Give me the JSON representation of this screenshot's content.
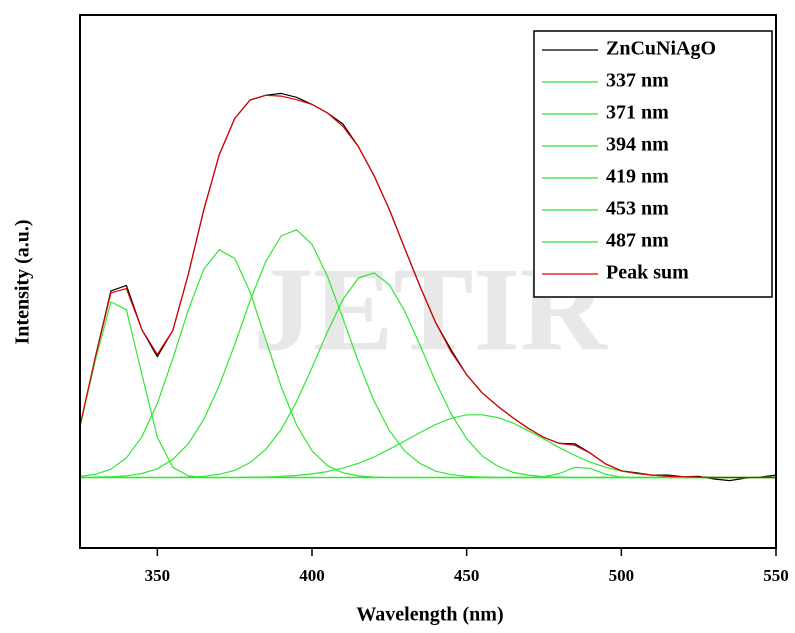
{
  "chart_data": {
    "type": "line",
    "xlabel": "Wavelength (nm)",
    "ylabel": "Intensity (a.u.)",
    "watermark": "JETIR",
    "x": [
      325,
      330,
      335,
      340,
      345,
      350,
      355,
      360,
      365,
      370,
      375,
      380,
      385,
      390,
      395,
      400,
      405,
      410,
      415,
      420,
      425,
      430,
      435,
      440,
      445,
      450,
      455,
      460,
      465,
      470,
      475,
      480,
      485,
      490,
      495,
      500,
      505,
      510,
      515,
      520,
      525,
      530,
      535,
      540,
      545,
      550
    ],
    "xlim": [
      325,
      550
    ],
    "xticks": [
      350,
      400,
      450,
      500,
      550
    ],
    "ylim": [
      -18,
      118
    ],
    "legend": "upper right",
    "series": [
      {
        "name": "ZnCuNiAgO",
        "color": "#000000",
        "values": [
          13.0,
          30.9,
          47.6,
          49.0,
          37.7,
          30.8,
          37.5,
          51.8,
          68.2,
          82.3,
          91.6,
          96.3,
          97.5,
          98.0,
          97.0,
          95.2,
          93.0,
          90.2,
          84.4,
          77.1,
          68.4,
          58.4,
          48.6,
          39.5,
          32.5,
          26.2,
          21.6,
          18.2,
          15.2,
          12.5,
          10.2,
          8.7,
          8.6,
          6.2,
          3.4,
          1.7,
          1.2,
          0.6,
          0.6,
          0.2,
          0.3,
          -0.4,
          -0.8,
          -0.2,
          0.1,
          0.6
        ]
      },
      {
        "name": "337 nm",
        "color": "#33e633",
        "values": [
          12.9,
          30.0,
          44.8,
          42.8,
          26.3,
          10.3,
          2.6,
          0.4,
          0,
          0,
          0,
          0,
          0,
          0,
          0,
          0,
          0,
          0,
          0,
          0,
          0,
          0,
          0,
          0,
          0,
          0,
          0,
          0,
          0,
          0,
          0,
          0,
          0,
          0,
          0,
          0,
          0,
          0,
          0,
          0,
          0,
          0,
          0,
          0,
          0,
          0
        ]
      },
      {
        "name": "371 nm",
        "color": "#33e633",
        "values": [
          0.3,
          0.8,
          2.1,
          5.0,
          10.4,
          18.9,
          30.3,
          42.7,
          53.1,
          58.1,
          55.9,
          47.3,
          35.3,
          23.2,
          13.4,
          6.8,
          3.0,
          1.2,
          0.4,
          0.1,
          0,
          0,
          0,
          0,
          0,
          0,
          0,
          0,
          0,
          0,
          0,
          0,
          0,
          0,
          0,
          0,
          0,
          0,
          0,
          0,
          0,
          0,
          0,
          0,
          0,
          0
        ]
      },
      {
        "name": "394 nm",
        "color": "#33e633",
        "values": [
          0,
          0.1,
          0.2,
          0.4,
          1.0,
          2.2,
          4.6,
          8.6,
          14.8,
          23.4,
          33.9,
          45.1,
          55.0,
          61.6,
          63.2,
          59.5,
          51.3,
          40.6,
          29.5,
          19.6,
          12.0,
          6.7,
          3.5,
          1.6,
          0.7,
          0.3,
          0.1,
          0,
          0,
          0,
          0,
          0,
          0,
          0,
          0,
          0,
          0,
          0,
          0,
          0,
          0,
          0,
          0,
          0,
          0,
          0
        ]
      },
      {
        "name": "419 nm",
        "color": "#33e633",
        "values": [
          0,
          0,
          0,
          0,
          0,
          0,
          0,
          0.1,
          0.3,
          0.8,
          1.8,
          3.8,
          7.1,
          12.2,
          19.3,
          28.0,
          37.2,
          45.4,
          50.9,
          52.2,
          49.2,
          42.4,
          33.6,
          24.4,
          16.2,
          9.9,
          5.5,
          2.9,
          1.3,
          0.6,
          0.2,
          0.1,
          0,
          0,
          0,
          0,
          0,
          0,
          0,
          0,
          0,
          0,
          0,
          0,
          0,
          0
        ]
      },
      {
        "name": "453 nm",
        "color": "#33e633",
        "values": [
          0,
          0,
          0,
          0,
          0,
          0,
          0,
          0,
          0,
          0,
          0,
          0.1,
          0.1,
          0.3,
          0.5,
          0.9,
          1.5,
          2.4,
          3.6,
          5.2,
          7.2,
          9.3,
          11.5,
          13.5,
          15.1,
          16.0,
          16.0,
          15.3,
          13.9,
          11.9,
          9.8,
          7.6,
          5.6,
          3.9,
          2.6,
          1.6,
          1.0,
          0.6,
          0.3,
          0.2,
          0.1,
          0,
          0,
          0,
          0,
          0
        ]
      },
      {
        "name": "487 nm",
        "color": "#33e633",
        "values": [
          0,
          0,
          0,
          0,
          0,
          0,
          0,
          0,
          0,
          0,
          0,
          0,
          0,
          0,
          0,
          0,
          0,
          0,
          0,
          0,
          0,
          0,
          0,
          0,
          0,
          0,
          0,
          0,
          0,
          0,
          0.2,
          1.0,
          2.6,
          2.3,
          0.8,
          0.1,
          0,
          0,
          0,
          0,
          0,
          0,
          0,
          0,
          0,
          0
        ]
      },
      {
        "name": "Peak sum",
        "color": "#e00000",
        "values": [
          13.2,
          30.9,
          47.1,
          48.2,
          37.7,
          31.4,
          37.5,
          51.8,
          68.2,
          82.3,
          91.6,
          96.3,
          97.5,
          97.3,
          96.4,
          95.2,
          93.0,
          89.6,
          84.4,
          77.1,
          68.4,
          58.4,
          48.6,
          39.5,
          32.0,
          26.2,
          21.6,
          18.2,
          15.2,
          12.5,
          10.2,
          8.7,
          8.2,
          6.2,
          3.4,
          1.7,
          1.0,
          0.6,
          0.3,
          0.2,
          0.1,
          0,
          0,
          0,
          0,
          0
        ]
      }
    ]
  }
}
